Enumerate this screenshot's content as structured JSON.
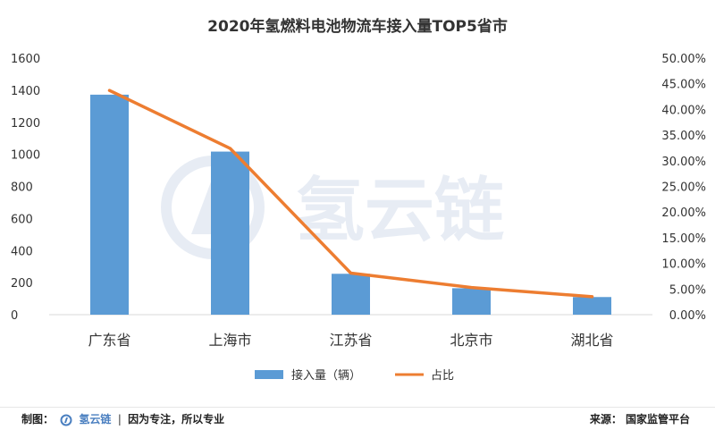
{
  "chart_data": {
    "type": "bar+line",
    "title": "2020年氢燃料电池物流车接入量TOP5省市",
    "categories": [
      "广东省",
      "上海市",
      "江苏省",
      "北京市",
      "湖北省"
    ],
    "series": [
      {
        "name": "接入量（辆）",
        "type": "bar",
        "axis": "left",
        "color": "#5b9bd5",
        "values": [
          1372,
          1017,
          255,
          165,
          110
        ]
      },
      {
        "name": "占比",
        "type": "line",
        "axis": "right",
        "color": "#ed7d31",
        "values": [
          0.437,
          0.324,
          0.081,
          0.053,
          0.035
        ]
      }
    ],
    "y_left": {
      "min": 0,
      "max": 1600,
      "ticks": [
        0,
        200,
        400,
        600,
        800,
        1000,
        1200,
        1400,
        1600
      ]
    },
    "y_right": {
      "min": 0,
      "max": 0.5,
      "ticks": [
        "0.00%",
        "5.00%",
        "10.00%",
        "15.00%",
        "20.00%",
        "25.00%",
        "30.00%",
        "35.00%",
        "40.00%",
        "45.00%",
        "50.00%"
      ]
    },
    "grid": false,
    "legend": "bottom"
  },
  "watermark": {
    "text": "氢云链"
  },
  "footer": {
    "left_prefix": "制图：",
    "logo_text": "氢云链",
    "separator": "|",
    "slogan": "因为专注，所以专业",
    "right": "来源：  国家监管平台"
  }
}
